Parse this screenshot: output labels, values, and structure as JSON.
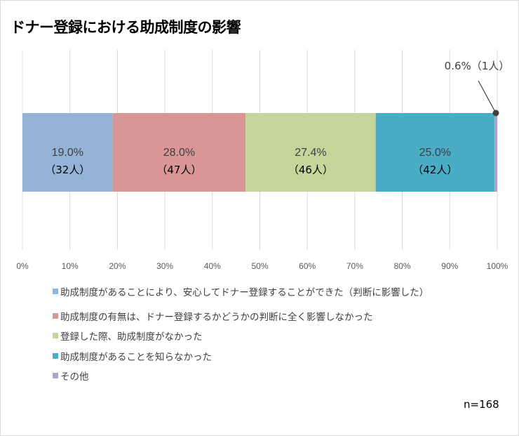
{
  "chart_data": {
    "type": "bar",
    "orientation": "horizontal-stacked-100",
    "title": "ドナー登録における助成制度の影響",
    "xlim": [
      0,
      100
    ],
    "x_ticks": [
      "0%",
      "10%",
      "20%",
      "30%",
      "40%",
      "50%",
      "60%",
      "70%",
      "80%",
      "90%",
      "100%"
    ],
    "grid": true,
    "legend_position": "bottom",
    "series": [
      {
        "name": "助成制度があることにより、安心してドナー登録することができた（判断に影響した）",
        "value": 19.0,
        "label": "19.0%",
        "count_label": "（32人）",
        "color": "#95b3d7"
      },
      {
        "name": "助成制度の有無は、ドナー登録するかどうかの判断に全く影響しなかった",
        "value": 28.0,
        "label": "28.0%",
        "count_label": "（47人）",
        "color": "#d99694"
      },
      {
        "name": "登録した際、助成制度がなかった",
        "value": 27.4,
        "label": "27.4%",
        "count_label": "（46人）",
        "color": "#c3d69b"
      },
      {
        "name": "助成制度があることを知らなかった",
        "value": 25.0,
        "label": "25.0%",
        "count_label": "（42人）",
        "color": "#4bacc6"
      },
      {
        "name": "その他",
        "value": 0.6,
        "label": "0.6%（1人）",
        "count_label": "",
        "color": "#b3a2c7"
      }
    ],
    "note": "n=168"
  }
}
